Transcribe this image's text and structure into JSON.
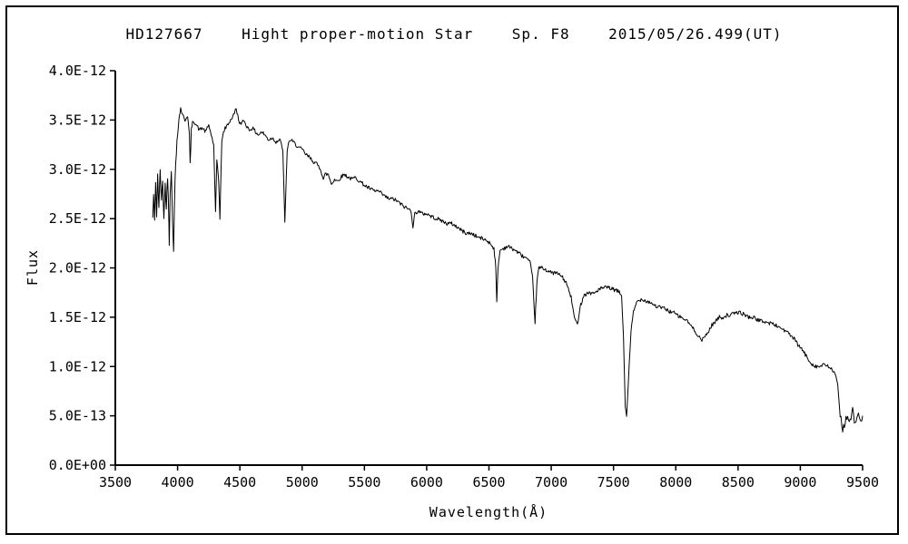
{
  "chart_data": {
    "type": "line",
    "title": "HD127667    Hight proper-motion Star    Sp. F8    2015/05/26.499(UT)",
    "xlabel": "Wavelength(Å)",
    "ylabel": "Flux",
    "xlim": [
      3500,
      9500
    ],
    "ylim_e12": [
      0,
      4.0
    ],
    "grid": false,
    "legend": "none",
    "line_color": "#000000",
    "x_ticks": [
      3500,
      4000,
      4500,
      5000,
      5500,
      6000,
      6500,
      7000,
      7500,
      8000,
      8500,
      9000,
      9500
    ],
    "y_ticks": [
      {
        "value_e12": 0.0,
        "label": "0.0E+00"
      },
      {
        "value_e12": 0.5,
        "label": "5.0E-13"
      },
      {
        "value_e12": 1.0,
        "label": "1.0E-12"
      },
      {
        "value_e12": 1.5,
        "label": "1.5E-12"
      },
      {
        "value_e12": 2.0,
        "label": "2.0E-12"
      },
      {
        "value_e12": 2.5,
        "label": "2.5E-12"
      },
      {
        "value_e12": 3.0,
        "label": "3.0E-12"
      },
      {
        "value_e12": 3.5,
        "label": "3.5E-12"
      },
      {
        "value_e12": 4.0,
        "label": "4.0E-12"
      }
    ],
    "flux_unit_scale": "1e-12",
    "noise": {
      "seed": 42,
      "amplitude_e12": 0.02,
      "step_angstrom": 6,
      "boost_below": 4000,
      "boost_above": 9300,
      "boost_factor": 2.5
    },
    "series": [
      {
        "name": "HD127667",
        "color": "#000000",
        "points_e12": [
          [
            3800,
            2.5
          ],
          [
            3808,
            2.75
          ],
          [
            3816,
            2.45
          ],
          [
            3824,
            2.85
          ],
          [
            3832,
            2.55
          ],
          [
            3840,
            2.95
          ],
          [
            3850,
            2.6
          ],
          [
            3860,
            3.0
          ],
          [
            3870,
            2.65
          ],
          [
            3880,
            2.9
          ],
          [
            3890,
            2.5
          ],
          [
            3900,
            2.85
          ],
          [
            3910,
            2.6
          ],
          [
            3920,
            2.95
          ],
          [
            3930,
            2.5
          ],
          [
            3933,
            2.25
          ],
          [
            3940,
            2.8
          ],
          [
            3950,
            2.95
          ],
          [
            3960,
            2.5
          ],
          [
            3968,
            2.2
          ],
          [
            3980,
            2.9
          ],
          [
            3995,
            3.3
          ],
          [
            4010,
            3.5
          ],
          [
            4025,
            3.62
          ],
          [
            4040,
            3.55
          ],
          [
            4060,
            3.5
          ],
          [
            4080,
            3.55
          ],
          [
            4095,
            3.35
          ],
          [
            4101,
            3.05
          ],
          [
            4110,
            3.4
          ],
          [
            4125,
            3.5
          ],
          [
            4150,
            3.45
          ],
          [
            4175,
            3.4
          ],
          [
            4200,
            3.42
          ],
          [
            4225,
            3.38
          ],
          [
            4250,
            3.45
          ],
          [
            4270,
            3.35
          ],
          [
            4290,
            3.25
          ],
          [
            4305,
            2.55
          ],
          [
            4315,
            3.1
          ],
          [
            4330,
            2.9
          ],
          [
            4340,
            2.5
          ],
          [
            4355,
            3.3
          ],
          [
            4375,
            3.4
          ],
          [
            4400,
            3.45
          ],
          [
            4425,
            3.5
          ],
          [
            4450,
            3.55
          ],
          [
            4470,
            3.62
          ],
          [
            4490,
            3.5
          ],
          [
            4510,
            3.45
          ],
          [
            4530,
            3.5
          ],
          [
            4550,
            3.45
          ],
          [
            4575,
            3.4
          ],
          [
            4600,
            3.42
          ],
          [
            4625,
            3.38
          ],
          [
            4650,
            3.35
          ],
          [
            4675,
            3.38
          ],
          [
            4700,
            3.35
          ],
          [
            4730,
            3.3
          ],
          [
            4760,
            3.32
          ],
          [
            4790,
            3.28
          ],
          [
            4820,
            3.3
          ],
          [
            4845,
            3.2
          ],
          [
            4861,
            2.45
          ],
          [
            4880,
            3.2
          ],
          [
            4900,
            3.3
          ],
          [
            4925,
            3.28
          ],
          [
            4950,
            3.25
          ],
          [
            4975,
            3.22
          ],
          [
            5000,
            3.2
          ],
          [
            5030,
            3.15
          ],
          [
            5060,
            3.12
          ],
          [
            5090,
            3.08
          ],
          [
            5120,
            3.05
          ],
          [
            5150,
            3.0
          ],
          [
            5170,
            2.9
          ],
          [
            5185,
            2.95
          ],
          [
            5210,
            2.95
          ],
          [
            5235,
            2.85
          ],
          [
            5260,
            2.9
          ],
          [
            5285,
            2.88
          ],
          [
            5310,
            2.92
          ],
          [
            5340,
            2.95
          ],
          [
            5370,
            2.92
          ],
          [
            5400,
            2.9
          ],
          [
            5430,
            2.92
          ],
          [
            5460,
            2.88
          ],
          [
            5490,
            2.85
          ],
          [
            5520,
            2.82
          ],
          [
            5550,
            2.8
          ],
          [
            5580,
            2.78
          ],
          [
            5610,
            2.78
          ],
          [
            5640,
            2.75
          ],
          [
            5670,
            2.72
          ],
          [
            5700,
            2.7
          ],
          [
            5730,
            2.7
          ],
          [
            5760,
            2.68
          ],
          [
            5790,
            2.65
          ],
          [
            5820,
            2.62
          ],
          [
            5850,
            2.6
          ],
          [
            5875,
            2.58
          ],
          [
            5890,
            2.42
          ],
          [
            5905,
            2.55
          ],
          [
            5930,
            2.58
          ],
          [
            5960,
            2.55
          ],
          [
            6000,
            2.55
          ],
          [
            6040,
            2.52
          ],
          [
            6080,
            2.5
          ],
          [
            6120,
            2.48
          ],
          [
            6160,
            2.45
          ],
          [
            6200,
            2.45
          ],
          [
            6240,
            2.42
          ],
          [
            6280,
            2.38
          ],
          [
            6320,
            2.35
          ],
          [
            6360,
            2.35
          ],
          [
            6400,
            2.32
          ],
          [
            6440,
            2.3
          ],
          [
            6480,
            2.28
          ],
          [
            6510,
            2.25
          ],
          [
            6540,
            2.2
          ],
          [
            6555,
            2.0
          ],
          [
            6563,
            1.65
          ],
          [
            6572,
            2.0
          ],
          [
            6590,
            2.18
          ],
          [
            6620,
            2.2
          ],
          [
            6650,
            2.22
          ],
          [
            6680,
            2.2
          ],
          [
            6710,
            2.18
          ],
          [
            6740,
            2.15
          ],
          [
            6770,
            2.12
          ],
          [
            6800,
            2.1
          ],
          [
            6830,
            2.05
          ],
          [
            6850,
            1.9
          ],
          [
            6870,
            1.45
          ],
          [
            6885,
            1.85
          ],
          [
            6900,
            2.0
          ],
          [
            6930,
            2.0
          ],
          [
            6960,
            1.98
          ],
          [
            7000,
            1.95
          ],
          [
            7040,
            1.95
          ],
          [
            7080,
            1.92
          ],
          [
            7120,
            1.85
          ],
          [
            7160,
            1.7
          ],
          [
            7185,
            1.5
          ],
          [
            7210,
            1.42
          ],
          [
            7230,
            1.6
          ],
          [
            7260,
            1.72
          ],
          [
            7300,
            1.75
          ],
          [
            7340,
            1.74
          ],
          [
            7380,
            1.78
          ],
          [
            7420,
            1.8
          ],
          [
            7460,
            1.8
          ],
          [
            7500,
            1.78
          ],
          [
            7540,
            1.76
          ],
          [
            7565,
            1.72
          ],
          [
            7580,
            1.3
          ],
          [
            7594,
            0.6
          ],
          [
            7605,
            0.5
          ],
          [
            7620,
            0.85
          ],
          [
            7640,
            1.35
          ],
          [
            7660,
            1.55
          ],
          [
            7685,
            1.65
          ],
          [
            7710,
            1.68
          ],
          [
            7740,
            1.68
          ],
          [
            7770,
            1.66
          ],
          [
            7800,
            1.65
          ],
          [
            7830,
            1.62
          ],
          [
            7860,
            1.6
          ],
          [
            7890,
            1.6
          ],
          [
            7920,
            1.58
          ],
          [
            7950,
            1.56
          ],
          [
            7980,
            1.55
          ],
          [
            8010,
            1.52
          ],
          [
            8040,
            1.5
          ],
          [
            8070,
            1.48
          ],
          [
            8100,
            1.45
          ],
          [
            8130,
            1.4
          ],
          [
            8160,
            1.35
          ],
          [
            8190,
            1.3
          ],
          [
            8210,
            1.26
          ],
          [
            8230,
            1.3
          ],
          [
            8260,
            1.35
          ],
          [
            8290,
            1.42
          ],
          [
            8320,
            1.46
          ],
          [
            8350,
            1.5
          ],
          [
            8380,
            1.5
          ],
          [
            8410,
            1.52
          ],
          [
            8440,
            1.52
          ],
          [
            8470,
            1.54
          ],
          [
            8500,
            1.55
          ],
          [
            8530,
            1.54
          ],
          [
            8560,
            1.52
          ],
          [
            8590,
            1.5
          ],
          [
            8620,
            1.5
          ],
          [
            8650,
            1.48
          ],
          [
            8680,
            1.46
          ],
          [
            8710,
            1.46
          ],
          [
            8740,
            1.44
          ],
          [
            8770,
            1.44
          ],
          [
            8800,
            1.42
          ],
          [
            8830,
            1.4
          ],
          [
            8860,
            1.38
          ],
          [
            8890,
            1.35
          ],
          [
            8920,
            1.32
          ],
          [
            8950,
            1.28
          ],
          [
            8980,
            1.22
          ],
          [
            9010,
            1.18
          ],
          [
            9040,
            1.12
          ],
          [
            9070,
            1.06
          ],
          [
            9100,
            1.02
          ],
          [
            9130,
            1.0
          ],
          [
            9160,
            1.0
          ],
          [
            9190,
            1.02
          ],
          [
            9220,
            1.0
          ],
          [
            9250,
            0.98
          ],
          [
            9280,
            0.92
          ],
          [
            9300,
            0.8
          ],
          [
            9320,
            0.5
          ],
          [
            9340,
            0.38
          ],
          [
            9360,
            0.45
          ],
          [
            9380,
            0.52
          ],
          [
            9400,
            0.42
          ],
          [
            9420,
            0.55
          ],
          [
            9440,
            0.4
          ],
          [
            9460,
            0.55
          ],
          [
            9480,
            0.42
          ],
          [
            9500,
            0.5
          ]
        ]
      }
    ]
  }
}
